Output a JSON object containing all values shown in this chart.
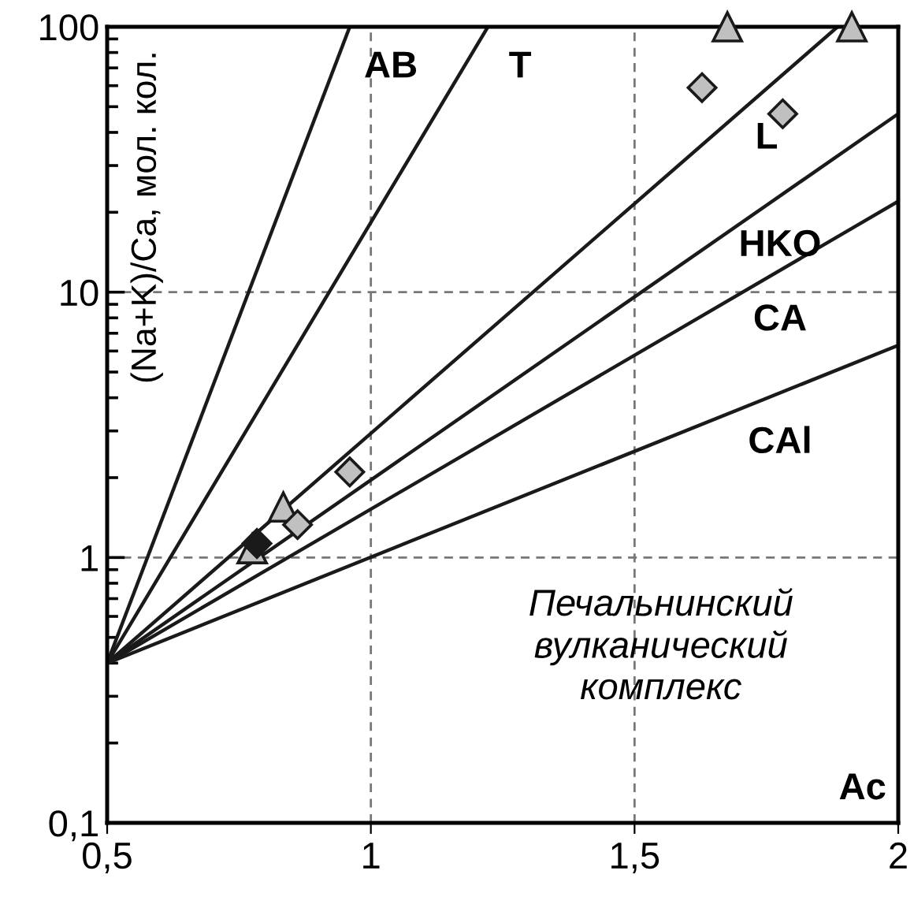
{
  "chart_data": {
    "type": "scatter",
    "log": "y",
    "grid": true,
    "xlim": [
      0.5,
      2
    ],
    "ylim": [
      0.1,
      100
    ],
    "xticks": [
      {
        "value": 0.5,
        "label": "0,5"
      },
      {
        "value": 1,
        "label": "1"
      },
      {
        "value": 1.5,
        "label": "1,5"
      },
      {
        "value": 2,
        "label": "2"
      }
    ],
    "yticks": [
      {
        "value": 0.1,
        "label": "0,1"
      },
      {
        "value": 1,
        "label": "1"
      },
      {
        "value": 10,
        "label": "10"
      },
      {
        "value": 100,
        "label": "100"
      }
    ],
    "xlabel": "Ac",
    "ylabel": "(Na+K)/Ca, мол. кол.",
    "series": [
      {
        "type": "line",
        "name": "AB",
        "color": "#1a1a1a",
        "x": [
          0.5,
          0.96
        ],
        "values": [
          0.4,
          100
        ]
      },
      {
        "type": "line",
        "name": "T",
        "color": "#1a1a1a",
        "x": [
          0.5,
          1.222
        ],
        "values": [
          0.4,
          100
        ]
      },
      {
        "type": "line",
        "name": "L",
        "color": "#1a1a1a",
        "x": [
          0.5,
          1.885
        ],
        "values": [
          0.4,
          100
        ]
      },
      {
        "type": "line",
        "name": "HKO",
        "color": "#1a1a1a",
        "x": [
          0.5,
          2
        ],
        "values": [
          0.4,
          47
        ]
      },
      {
        "type": "line",
        "name": "CA",
        "color": "#1a1a1a",
        "x": [
          0.5,
          2
        ],
        "values": [
          0.4,
          22
        ]
      },
      {
        "type": "line",
        "name": "CAl",
        "color": "#1a1a1a",
        "x": [
          0.5,
          2
        ],
        "values": [
          0.4,
          6.3
        ]
      },
      {
        "marker": "triangle",
        "color": "#c0c0c0",
        "x": [
          1.676,
          1.912,
          0.834,
          0.775
        ],
        "values": [
          100,
          100,
          1.55,
          1.08
        ]
      },
      {
        "marker": "diamond",
        "color": "#c0c0c0",
        "x": [
          1.628,
          1.781,
          0.96,
          0.861
        ],
        "values": [
          59,
          47,
          2.1,
          1.33
        ]
      },
      {
        "marker": "diamond",
        "color": "#1a1a1a",
        "x": [
          0.784
        ],
        "values": [
          1.13
        ]
      }
    ],
    "annotations": [
      "Печальнинский\nвулканический\nкомплекс"
    ]
  }
}
